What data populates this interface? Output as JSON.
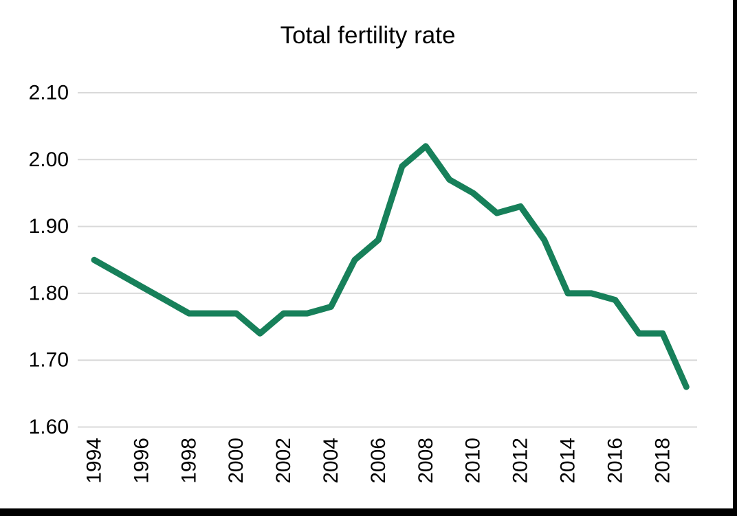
{
  "chart_data": {
    "type": "line",
    "title": "Total fertility rate",
    "series_name": "Total fertility rate",
    "x": [
      1994,
      1995,
      1996,
      1997,
      1998,
      1999,
      2000,
      2001,
      2002,
      2003,
      2004,
      2005,
      2006,
      2007,
      2008,
      2009,
      2010,
      2011,
      2012,
      2013,
      2014,
      2015,
      2016,
      2017,
      2018,
      2019
    ],
    "values": [
      1.85,
      1.83,
      1.81,
      1.79,
      1.77,
      1.77,
      1.77,
      1.74,
      1.77,
      1.77,
      1.78,
      1.85,
      1.88,
      1.99,
      2.02,
      1.97,
      1.95,
      1.92,
      1.93,
      1.88,
      1.8,
      1.8,
      1.79,
      1.74,
      1.74,
      1.66
    ],
    "xlabel": "",
    "ylabel": "",
    "ylim": [
      1.6,
      2.1
    ],
    "ytick_step": 0.1,
    "ytick_decimals": 2,
    "xtick_every": 2,
    "xtick_labels": [
      "1994",
      "1996",
      "1998",
      "2000",
      "2002",
      "2004",
      "2006",
      "2008",
      "2010",
      "2012",
      "2014",
      "2016",
      "2018"
    ],
    "ytick_labels": [
      "1.60",
      "1.70",
      "1.80",
      "1.90",
      "2.00",
      "2.10"
    ],
    "grid": "horizontal",
    "legend": "none",
    "colors": {
      "line": "#17805A",
      "grid": "#D9D9D9",
      "text": "#000000",
      "background": "#FFFFFF",
      "window_edge": "#000000"
    }
  }
}
